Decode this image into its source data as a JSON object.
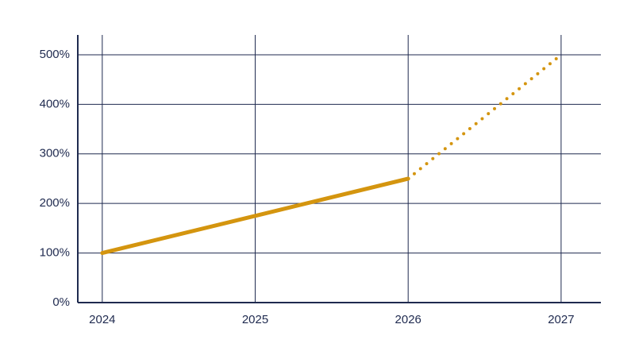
{
  "chart_data": {
    "type": "line",
    "x": [
      2024,
      2025,
      2026,
      2027
    ],
    "series": [
      {
        "color": "#d4950f",
        "dash": "solid",
        "values": [
          100,
          175,
          250,
          null
        ]
      },
      {
        "color": "#d4950f",
        "dash": "dotted",
        "values": [
          null,
          null,
          250,
          500
        ]
      }
    ],
    "xlim": [
      2023.84,
      2027.26
    ],
    "xticks": [
      2024,
      2025,
      2026,
      2027
    ],
    "ylim": [
      0,
      540
    ],
    "yticks": [
      {
        "value": 0,
        "label": "0%"
      },
      {
        "value": 100,
        "label": "100%"
      },
      {
        "value": 200,
        "label": "200%"
      },
      {
        "value": 300,
        "label": "300%"
      },
      {
        "value": 400,
        "label": "400%"
      },
      {
        "value": 500,
        "label": "500%"
      }
    ],
    "grid": true
  }
}
